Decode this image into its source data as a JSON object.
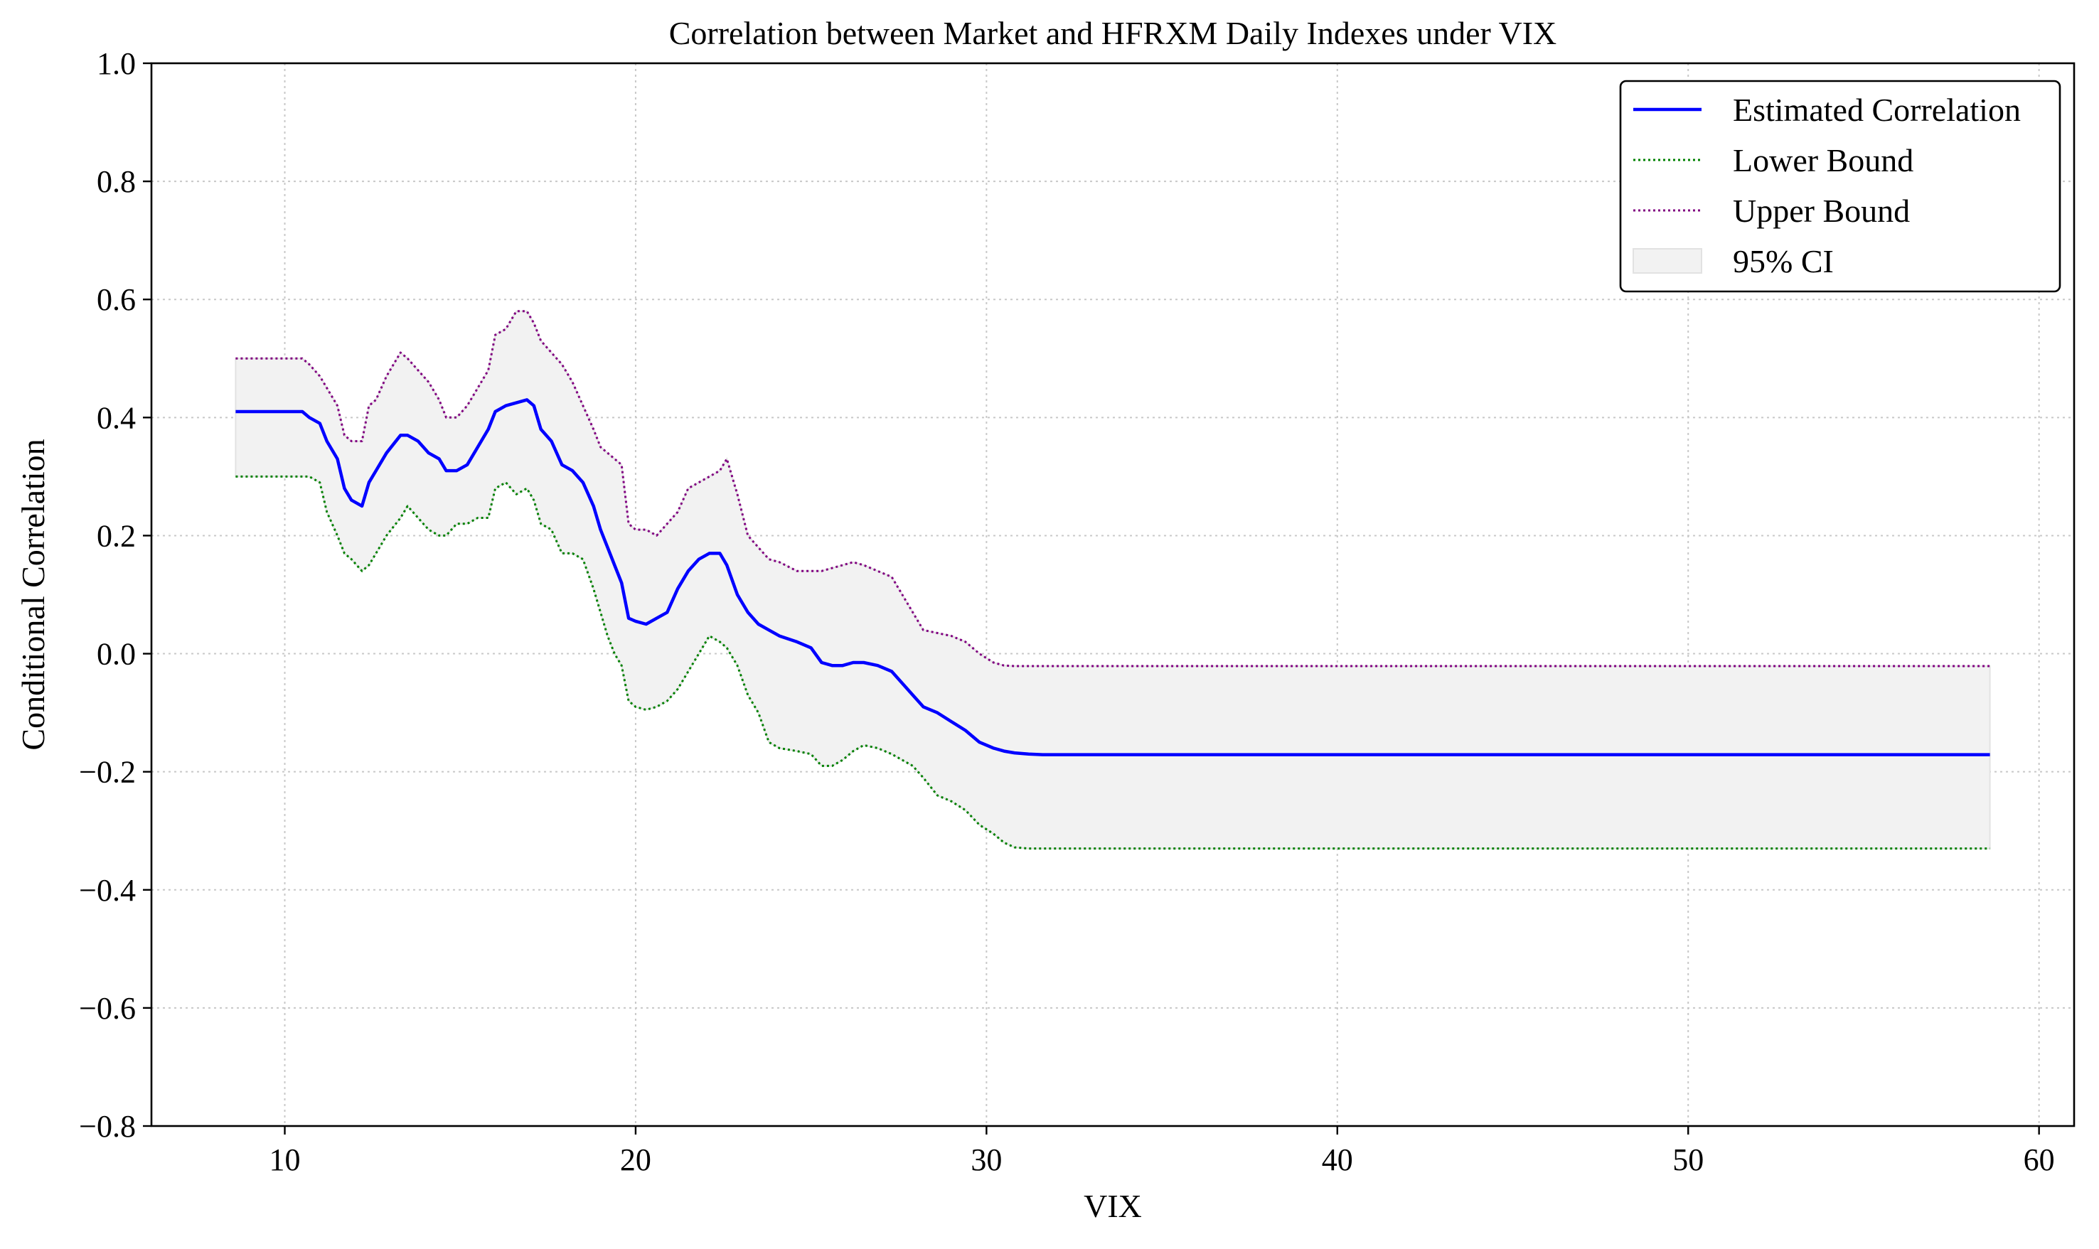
{
  "chart_data": {
    "type": "line",
    "title": "Correlation between Market and HFRXM Daily Indexes under VIX",
    "xlabel": "VIX",
    "ylabel": "Conditional Correlation",
    "xlim": [
      6.2,
      61.0
    ],
    "ylim": [
      -0.8,
      1.0
    ],
    "xticks": [
      10,
      20,
      30,
      40,
      50,
      60
    ],
    "yticks": [
      1.0,
      0.8,
      0.6,
      0.4,
      0.2,
      0.0,
      -0.2,
      -0.4,
      -0.6,
      -0.8
    ],
    "xtick_labels": [
      "10",
      "20",
      "30",
      "40",
      "50",
      "60"
    ],
    "ytick_labels": [
      "1.0",
      "0.8",
      "0.6",
      "0.4",
      "0.2",
      "0.0",
      "−0.2",
      "−0.4",
      "−0.6",
      "−0.8"
    ],
    "grid": true,
    "legend_position": "top-right",
    "series": [
      {
        "name": "Estimated Correlation",
        "color": "#0000ff",
        "style": "solid",
        "x": [
          8.6,
          9.5,
          10.5,
          10.7,
          11.0,
          11.2,
          11.5,
          11.7,
          11.9,
          12.2,
          12.4,
          12.6,
          12.9,
          13.3,
          13.5,
          13.8,
          14.1,
          14.4,
          14.6,
          14.9,
          15.2,
          15.5,
          15.8,
          16.0,
          16.3,
          16.6,
          16.9,
          17.1,
          17.3,
          17.6,
          17.9,
          18.2,
          18.5,
          18.8,
          19.0,
          19.2,
          19.4,
          19.6,
          19.8,
          20.0,
          20.3,
          20.6,
          20.9,
          21.2,
          21.5,
          21.8,
          22.1,
          22.4,
          22.6,
          22.9,
          23.2,
          23.5,
          23.8,
          24.1,
          24.6,
          25.0,
          25.3,
          25.6,
          25.9,
          26.2,
          26.5,
          26.9,
          27.3,
          27.6,
          27.9,
          28.2,
          28.6,
          29.0,
          29.4,
          29.8,
          30.2,
          30.5,
          30.8,
          31.2,
          31.6,
          32.0,
          58.6
        ],
        "values": [
          0.41,
          0.41,
          0.41,
          0.4,
          0.39,
          0.36,
          0.33,
          0.28,
          0.26,
          0.25,
          0.29,
          0.31,
          0.34,
          0.37,
          0.37,
          0.36,
          0.34,
          0.33,
          0.31,
          0.31,
          0.32,
          0.35,
          0.38,
          0.41,
          0.42,
          0.425,
          0.43,
          0.42,
          0.38,
          0.36,
          0.32,
          0.31,
          0.29,
          0.25,
          0.21,
          0.18,
          0.15,
          0.12,
          0.06,
          0.055,
          0.05,
          0.06,
          0.07,
          0.11,
          0.14,
          0.16,
          0.17,
          0.17,
          0.15,
          0.1,
          0.07,
          0.05,
          0.04,
          0.03,
          0.02,
          0.01,
          -0.015,
          -0.02,
          -0.02,
          -0.015,
          -0.015,
          -0.02,
          -0.03,
          -0.05,
          -0.07,
          -0.09,
          -0.1,
          -0.115,
          -0.13,
          -0.15,
          -0.16,
          -0.165,
          -0.168,
          -0.17,
          -0.171,
          -0.171,
          -0.171
        ]
      },
      {
        "name": "Lower Bound",
        "color": "#008000",
        "style": "dotted",
        "x": [
          8.6,
          9.5,
          10.5,
          10.7,
          11.0,
          11.2,
          11.5,
          11.7,
          11.9,
          12.2,
          12.4,
          12.6,
          12.9,
          13.3,
          13.5,
          13.8,
          14.1,
          14.4,
          14.6,
          14.9,
          15.2,
          15.5,
          15.8,
          16.0,
          16.3,
          16.6,
          16.9,
          17.1,
          17.3,
          17.6,
          17.9,
          18.2,
          18.5,
          18.8,
          19.0,
          19.2,
          19.4,
          19.6,
          19.8,
          20.0,
          20.3,
          20.6,
          20.9,
          21.2,
          21.5,
          21.8,
          22.1,
          22.4,
          22.6,
          22.9,
          23.2,
          23.5,
          23.8,
          24.1,
          24.6,
          25.0,
          25.3,
          25.6,
          25.9,
          26.2,
          26.5,
          26.9,
          27.3,
          27.6,
          27.9,
          28.2,
          28.6,
          29.0,
          29.4,
          29.8,
          30.2,
          30.5,
          30.8,
          31.2,
          31.6,
          32.0,
          58.6
        ],
        "values": [
          0.3,
          0.3,
          0.3,
          0.3,
          0.29,
          0.24,
          0.2,
          0.17,
          0.16,
          0.14,
          0.15,
          0.17,
          0.2,
          0.23,
          0.25,
          0.23,
          0.21,
          0.2,
          0.2,
          0.22,
          0.22,
          0.23,
          0.23,
          0.28,
          0.29,
          0.27,
          0.28,
          0.26,
          0.22,
          0.21,
          0.17,
          0.17,
          0.16,
          0.11,
          0.07,
          0.03,
          0.0,
          -0.02,
          -0.08,
          -0.09,
          -0.095,
          -0.09,
          -0.08,
          -0.06,
          -0.03,
          0.0,
          0.03,
          0.02,
          0.01,
          -0.02,
          -0.07,
          -0.1,
          -0.15,
          -0.16,
          -0.165,
          -0.17,
          -0.19,
          -0.19,
          -0.18,
          -0.165,
          -0.155,
          -0.16,
          -0.17,
          -0.18,
          -0.19,
          -0.21,
          -0.24,
          -0.25,
          -0.265,
          -0.29,
          -0.305,
          -0.32,
          -0.328,
          -0.33,
          -0.33,
          -0.33,
          -0.33
        ]
      },
      {
        "name": "Upper Bound",
        "color": "#800080",
        "style": "dotted",
        "x": [
          8.6,
          9.5,
          10.5,
          10.7,
          11.0,
          11.2,
          11.5,
          11.7,
          11.9,
          12.2,
          12.4,
          12.6,
          12.9,
          13.3,
          13.5,
          13.8,
          14.1,
          14.4,
          14.6,
          14.9,
          15.2,
          15.5,
          15.8,
          16.0,
          16.3,
          16.6,
          16.9,
          17.1,
          17.3,
          17.6,
          17.9,
          18.2,
          18.5,
          18.8,
          19.0,
          19.2,
          19.4,
          19.6,
          19.8,
          20.0,
          20.3,
          20.6,
          20.9,
          21.2,
          21.5,
          21.8,
          22.1,
          22.4,
          22.6,
          22.9,
          23.2,
          23.5,
          23.8,
          24.1,
          24.6,
          25.0,
          25.3,
          25.6,
          25.9,
          26.2,
          26.5,
          26.9,
          27.3,
          27.6,
          27.9,
          28.2,
          28.6,
          29.0,
          29.4,
          29.8,
          30.2,
          30.5,
          30.8,
          31.2,
          31.6,
          32.0,
          58.6
        ],
        "values": [
          0.5,
          0.5,
          0.5,
          0.49,
          0.47,
          0.45,
          0.42,
          0.37,
          0.36,
          0.36,
          0.42,
          0.43,
          0.47,
          0.51,
          0.5,
          0.48,
          0.46,
          0.43,
          0.4,
          0.4,
          0.42,
          0.45,
          0.48,
          0.54,
          0.55,
          0.58,
          0.58,
          0.56,
          0.53,
          0.51,
          0.49,
          0.46,
          0.42,
          0.38,
          0.35,
          0.34,
          0.33,
          0.32,
          0.22,
          0.21,
          0.21,
          0.2,
          0.22,
          0.24,
          0.28,
          0.29,
          0.3,
          0.31,
          0.33,
          0.27,
          0.2,
          0.18,
          0.16,
          0.155,
          0.14,
          0.14,
          0.14,
          0.145,
          0.15,
          0.155,
          0.15,
          0.14,
          0.13,
          0.1,
          0.07,
          0.04,
          0.035,
          0.03,
          0.02,
          0.0,
          -0.015,
          -0.02,
          -0.021,
          -0.021,
          -0.021,
          -0.021,
          -0.021
        ]
      }
    ],
    "ci_band": {
      "name": "95% CI",
      "color": "#f2f2f2"
    }
  }
}
